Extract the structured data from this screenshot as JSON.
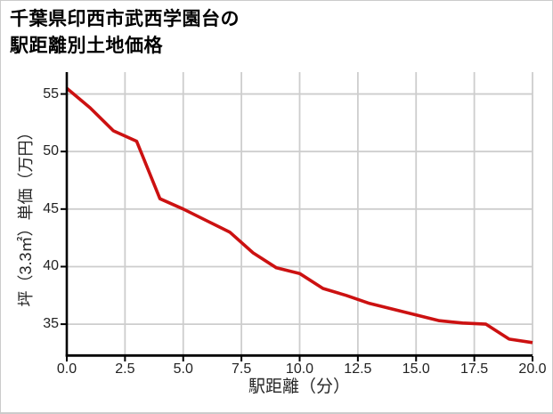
{
  "title": {
    "line1": "千葉県印西市武西学園台の",
    "line2": "駅距離別土地価格"
  },
  "chart_data": {
    "type": "line",
    "title": "千葉県印西市武西学園台の駅距離別土地価格",
    "xlabel": "駅距離（分）",
    "ylabel": "坪（3.3㎡）単価（万円）",
    "x": [
      0,
      1,
      2,
      3,
      4,
      5,
      6,
      7,
      8,
      9,
      10,
      11,
      12,
      13,
      14,
      15,
      16,
      17,
      18,
      19,
      20
    ],
    "y": [
      55.5,
      53.8,
      51.8,
      50.9,
      45.9,
      45.0,
      44.0,
      43.0,
      41.2,
      39.9,
      39.4,
      38.1,
      37.5,
      36.8,
      36.3,
      35.8,
      35.3,
      35.1,
      35.0,
      33.7,
      33.4
    ],
    "xlim": [
      0,
      20
    ],
    "ylim": [
      32.3,
      56.9
    ],
    "xticks": [
      "0.0",
      "2.5",
      "5.0",
      "7.5",
      "10.0",
      "12.5",
      "15.0",
      "17.5",
      "20.0"
    ],
    "yticks": [
      "35",
      "40",
      "45",
      "50",
      "55"
    ],
    "grid": true,
    "legend_position": "none",
    "line_color": "#cc1111",
    "grid_color": "#cdcdcd",
    "axis_color": "#000000"
  }
}
